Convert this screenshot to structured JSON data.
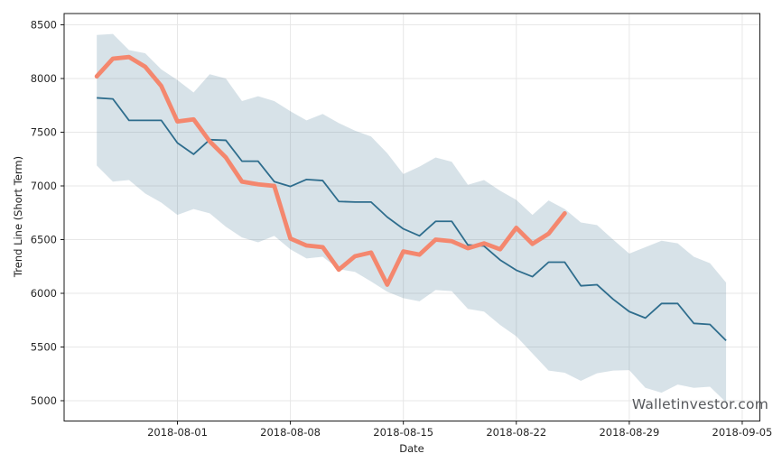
{
  "watermark": "Walletinvestor.com",
  "colors": {
    "background": "#ffffff",
    "grid": "#e7e7e7",
    "spine": "#1a1a1a",
    "tick_label": "#262626",
    "forecast_line": "#2e6d8d",
    "actual_line": "#f4876e",
    "band_fill": "rgba(73,121,150,0.22)",
    "watermark_text": "#56585c"
  },
  "chart_data": {
    "type": "line",
    "title": "",
    "xlabel": "Date",
    "ylabel": "Trend Line (Short Term)",
    "grid": true,
    "legend_position": "none",
    "ylim": [
      4810,
      8600
    ],
    "y_ticks": [
      5000,
      5500,
      6000,
      6500,
      7000,
      7500,
      8000,
      8500
    ],
    "x_tick_labels": [
      "2018-08-01",
      "2018-08-08",
      "2018-08-15",
      "2018-08-22",
      "2018-08-29",
      "2018-09-05"
    ],
    "x_tick_day_index": [
      5,
      12,
      19,
      26,
      33,
      40
    ],
    "dates": [
      "2018-07-27",
      "2018-07-28",
      "2018-07-29",
      "2018-07-30",
      "2018-07-31",
      "2018-08-01",
      "2018-08-02",
      "2018-08-03",
      "2018-08-04",
      "2018-08-05",
      "2018-08-06",
      "2018-08-07",
      "2018-08-08",
      "2018-08-09",
      "2018-08-10",
      "2018-08-11",
      "2018-08-12",
      "2018-08-13",
      "2018-08-14",
      "2018-08-15",
      "2018-08-16",
      "2018-08-17",
      "2018-08-18",
      "2018-08-19",
      "2018-08-20",
      "2018-08-21",
      "2018-08-22",
      "2018-08-23",
      "2018-08-24",
      "2018-08-25",
      "2018-08-26",
      "2018-08-27",
      "2018-08-28",
      "2018-08-29",
      "2018-08-30",
      "2018-08-31",
      "2018-09-01",
      "2018-09-02",
      "2018-09-03",
      "2018-09-04"
    ],
    "series": [
      {
        "name": "actual_price",
        "role": "actual",
        "color": "#f4876e",
        "values": [
          8020,
          8185,
          8200,
          8110,
          7930,
          7600,
          7620,
          7415,
          7265,
          7040,
          7015,
          7000,
          6510,
          6445,
          6430,
          6220,
          6345,
          6380,
          6080,
          6390,
          6360,
          6500,
          6485,
          6420,
          6465,
          6410,
          6610,
          6460,
          6555,
          6745
        ]
      },
      {
        "name": "forecast_trend",
        "role": "forecast",
        "color": "#2e6d8d",
        "values": [
          7820,
          7810,
          7610,
          7610,
          7610,
          7400,
          7295,
          7430,
          7425,
          7230,
          7230,
          7040,
          6995,
          7060,
          7050,
          6855,
          6850,
          6850,
          6710,
          6600,
          6535,
          6670,
          6670,
          6450,
          6440,
          6310,
          6215,
          6155,
          6290,
          6290,
          6070,
          6080,
          5945,
          5830,
          5770,
          5905,
          5905,
          5720,
          5710,
          5560
        ]
      },
      {
        "name": "confidence_band_upper",
        "role": "band_upper",
        "color": "rgba(73,121,150,0.22)",
        "values": [
          8405,
          8415,
          8265,
          8235,
          8085,
          7985,
          7870,
          8040,
          8000,
          7790,
          7835,
          7790,
          7695,
          7610,
          7670,
          7585,
          7515,
          7460,
          7305,
          7110,
          7180,
          7265,
          7225,
          7010,
          7055,
          6955,
          6870,
          6730,
          6865,
          6785,
          6660,
          6635,
          6500,
          6370,
          6430,
          6490,
          6465,
          6340,
          6280,
          6100
        ]
      },
      {
        "name": "confidence_band_lower",
        "role": "band_lower",
        "color": "rgba(73,121,150,0.22)",
        "values": [
          7190,
          7040,
          7055,
          6930,
          6845,
          6730,
          6785,
          6745,
          6620,
          6520,
          6475,
          6535,
          6410,
          6325,
          6340,
          6225,
          6200,
          6110,
          6015,
          5955,
          5925,
          6030,
          6020,
          5855,
          5830,
          5705,
          5600,
          5440,
          5280,
          5260,
          5185,
          5255,
          5280,
          5285,
          5120,
          5075,
          5150,
          5120,
          5130,
          4985
        ]
      }
    ]
  }
}
